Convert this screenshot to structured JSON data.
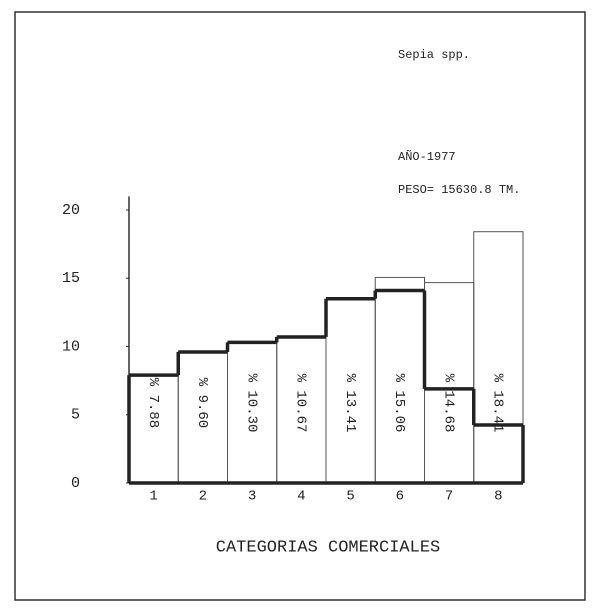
{
  "chart_data": {
    "type": "bar",
    "title": "Sepia spp.",
    "annotations": [
      "AÑO-1977",
      "PESO= 15630.8 TM."
    ],
    "x_label": "CATEGORIAS COMERCIALES",
    "categories": [
      "1",
      "2",
      "3",
      "4",
      "5",
      "6",
      "7",
      "8"
    ],
    "series": [
      {
        "type": "bar",
        "color": "#555555",
        "values": [
          7.88,
          9.6,
          10.3,
          10.67,
          13.41,
          15.06,
          14.68,
          18.41
        ],
        "value_labels": [
          "% 7.88",
          "% 9.60",
          "% 10.30",
          "% 10.67",
          "% 13.41",
          "% 15.06",
          "% 14.68",
          "% 18.41"
        ]
      },
      {
        "type": "step",
        "color": "#222222",
        "values": [
          7.9,
          9.6,
          10.3,
          10.7,
          13.5,
          14.1,
          6.9,
          4.25
        ]
      }
    ],
    "ylim": [
      0,
      21
    ],
    "yticks": [
      0,
      5,
      10,
      15,
      20
    ]
  }
}
